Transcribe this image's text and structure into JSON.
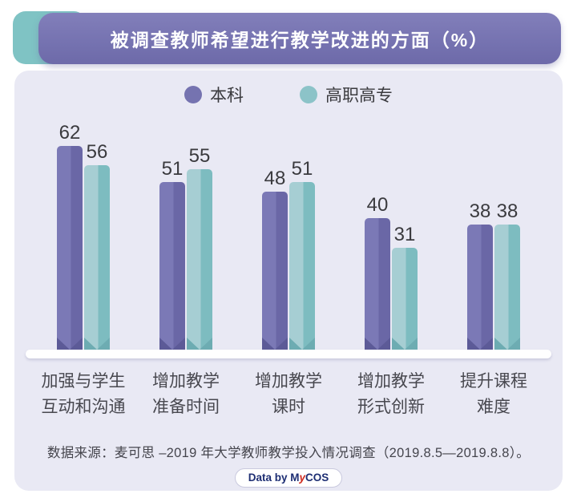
{
  "title": "被调查教师希望进行教学改进的方面（%）",
  "chart_data": {
    "type": "bar",
    "title": "被调查教师希望进行教学改进的方面（%）",
    "categories": [
      "加强与学生互动和沟通",
      "增加教学准备时间",
      "增加教学课时",
      "增加教学形式创新",
      "提升课程难度"
    ],
    "categories_lines": [
      [
        "加强与学生",
        "互动和沟通"
      ],
      [
        "增加教学",
        "准备时间"
      ],
      [
        "增加教学",
        "课时"
      ],
      [
        "增加教学",
        "形式创新"
      ],
      [
        "提升课程",
        "难度"
      ]
    ],
    "series": [
      {
        "name": "本科",
        "values": [
          62,
          51,
          48,
          40,
          38
        ],
        "color": "#7573b0",
        "color_light": "#7b79b6",
        "color_dark": "#6a67a6",
        "color_shade": "#5c5a97"
      },
      {
        "name": "高职高专",
        "values": [
          56,
          55,
          51,
          31,
          38
        ],
        "color": "#8cc3c8",
        "color_light": "#a6ced3",
        "color_dark": "#7dbcc0",
        "color_shade": "#6dacb2"
      }
    ],
    "value_labels": true,
    "xlabel": "",
    "ylabel": "",
    "ylim": [
      0,
      70
    ],
    "grid": false,
    "legend_position": "top"
  },
  "footer": {
    "source": "数据来源：麦可思 –2019 年大学教师教学投入情况调查（2019.8.5—2019.8.8）。",
    "badge": {
      "prefix": "Data by ",
      "brand_m": "M",
      "brand_y": "y",
      "brand_cos": "COS"
    }
  },
  "colors": {
    "page_bg": "#ffffff",
    "card_bg": "#e9e9f4",
    "title_bar": "#7673b1",
    "title_accent": "#7fc3c4",
    "baseline": "#ffffff",
    "value_text": "#3a3a3e",
    "category_text": "#48484f",
    "badge_navy": "#1d2e73",
    "badge_red": "#cf2a1f"
  }
}
